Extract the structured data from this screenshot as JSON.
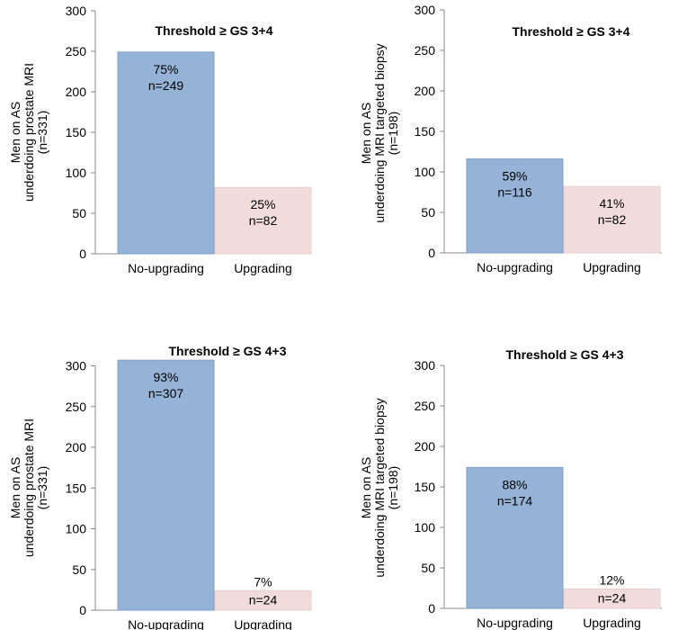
{
  "chart_data": [
    {
      "type": "bar",
      "title": "Threshold ≥ GS 3+4",
      "ylabel": [
        "Men on AS",
        "underdoing prostate MRI",
        "(n=331)"
      ],
      "categories": [
        "No-upgrading",
        "Upgrading"
      ],
      "values": [
        249,
        82
      ],
      "bar_labels": [
        [
          "75%",
          "n=249"
        ],
        [
          "25%",
          "n=82"
        ]
      ],
      "ylim": [
        0,
        300
      ],
      "yticks": [
        0,
        50,
        100,
        150,
        200,
        250,
        300
      ],
      "colors": [
        "#95b3d7",
        "#f2dcdb"
      ]
    },
    {
      "type": "bar",
      "title": "Threshold ≥ GS 3+4",
      "ylabel": [
        "Men on AS",
        "underdoing MRI targeted biopsy",
        "(n=198)"
      ],
      "categories": [
        "No-upgrading",
        "Upgrading"
      ],
      "values": [
        116,
        82
      ],
      "bar_labels": [
        [
          "59%",
          "n=116"
        ],
        [
          "41%",
          "n=82"
        ]
      ],
      "ylim": [
        0,
        300
      ],
      "yticks": [
        0,
        50,
        100,
        150,
        200,
        250,
        300
      ],
      "colors": [
        "#95b3d7",
        "#f2dcdb"
      ]
    },
    {
      "type": "bar",
      "title": "Threshold ≥ GS 4+3",
      "ylabel": [
        "Men on AS",
        "underdoing prostate MRI",
        "(n=331)"
      ],
      "categories": [
        "No-upgrading",
        "Upgrading"
      ],
      "values": [
        307,
        24
      ],
      "bar_labels": [
        [
          "93%",
          "n=307"
        ],
        [
          "7%",
          "n=24"
        ]
      ],
      "ylim": [
        0,
        300
      ],
      "yticks": [
        0,
        50,
        100,
        150,
        200,
        250,
        300
      ],
      "colors": [
        "#95b3d7",
        "#f2dcdb"
      ]
    },
    {
      "type": "bar",
      "title": "Threshold ≥ GS 4+3",
      "ylabel": [
        "Men on AS",
        "underdoing MRI targeted biopsy",
        "(n=198)"
      ],
      "categories": [
        "No-upgrading",
        "Upgrading"
      ],
      "values": [
        174,
        24
      ],
      "bar_labels": [
        [
          "88%",
          "n=174"
        ],
        [
          "12%",
          "n=24"
        ]
      ],
      "ylim": [
        0,
        300
      ],
      "yticks": [
        0,
        50,
        100,
        150,
        200,
        250,
        300
      ],
      "colors": [
        "#95b3d7",
        "#f2dcdb"
      ]
    }
  ]
}
